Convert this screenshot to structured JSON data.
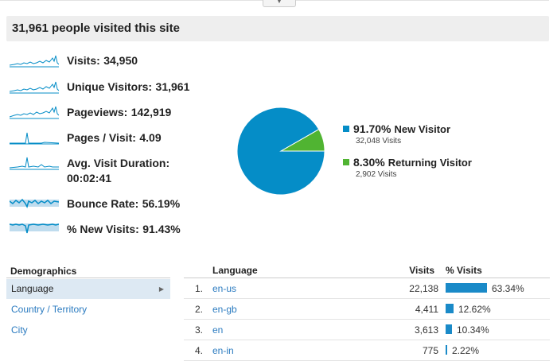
{
  "header": {
    "title": "31,961 people visited this site"
  },
  "metrics": [
    {
      "label": "Visits:",
      "value": "34,950"
    },
    {
      "label": "Unique Visitors:",
      "value": "31,961"
    },
    {
      "label": "Pageviews:",
      "value": "142,919"
    },
    {
      "label": "Pages / Visit:",
      "value": "4.09"
    },
    {
      "label": "Avg. Visit Duration:",
      "value": "00:02:41"
    },
    {
      "label": "Bounce Rate:",
      "value": "56.19%"
    },
    {
      "label": "% New Visits:",
      "value": "91.43%"
    }
  ],
  "pie": {
    "slices": [
      {
        "pct": "91.70%",
        "name": "New Visitor",
        "visits": "32,048 Visits",
        "fraction": 0.917,
        "color": "#058dc7"
      },
      {
        "pct": "8.30%",
        "name": "Returning Visitor",
        "visits": "2,902 Visits",
        "fraction": 0.083,
        "color": "#50b432"
      }
    ]
  },
  "demographics": {
    "title": "Demographics",
    "items": [
      "Language",
      "Country / Territory",
      "City"
    ]
  },
  "table": {
    "headers": {
      "language": "Language",
      "visits": "Visits",
      "pct": "% Visits"
    },
    "rows": [
      {
        "idx": "1.",
        "lang": "en-us",
        "visits": "22,138",
        "pct": "63.34%",
        "fraction": 0.6334
      },
      {
        "idx": "2.",
        "lang": "en-gb",
        "visits": "4,411",
        "pct": "12.62%",
        "fraction": 0.1262
      },
      {
        "idx": "3.",
        "lang": "en",
        "visits": "3,613",
        "pct": "10.34%",
        "fraction": 0.1034
      },
      {
        "idx": "4.",
        "lang": "en-in",
        "visits": "775",
        "pct": "2.22%",
        "fraction": 0.0222
      }
    ]
  },
  "colors": {
    "accent": "#058dc7",
    "returning": "#50b432",
    "link": "#2b7bc0"
  }
}
